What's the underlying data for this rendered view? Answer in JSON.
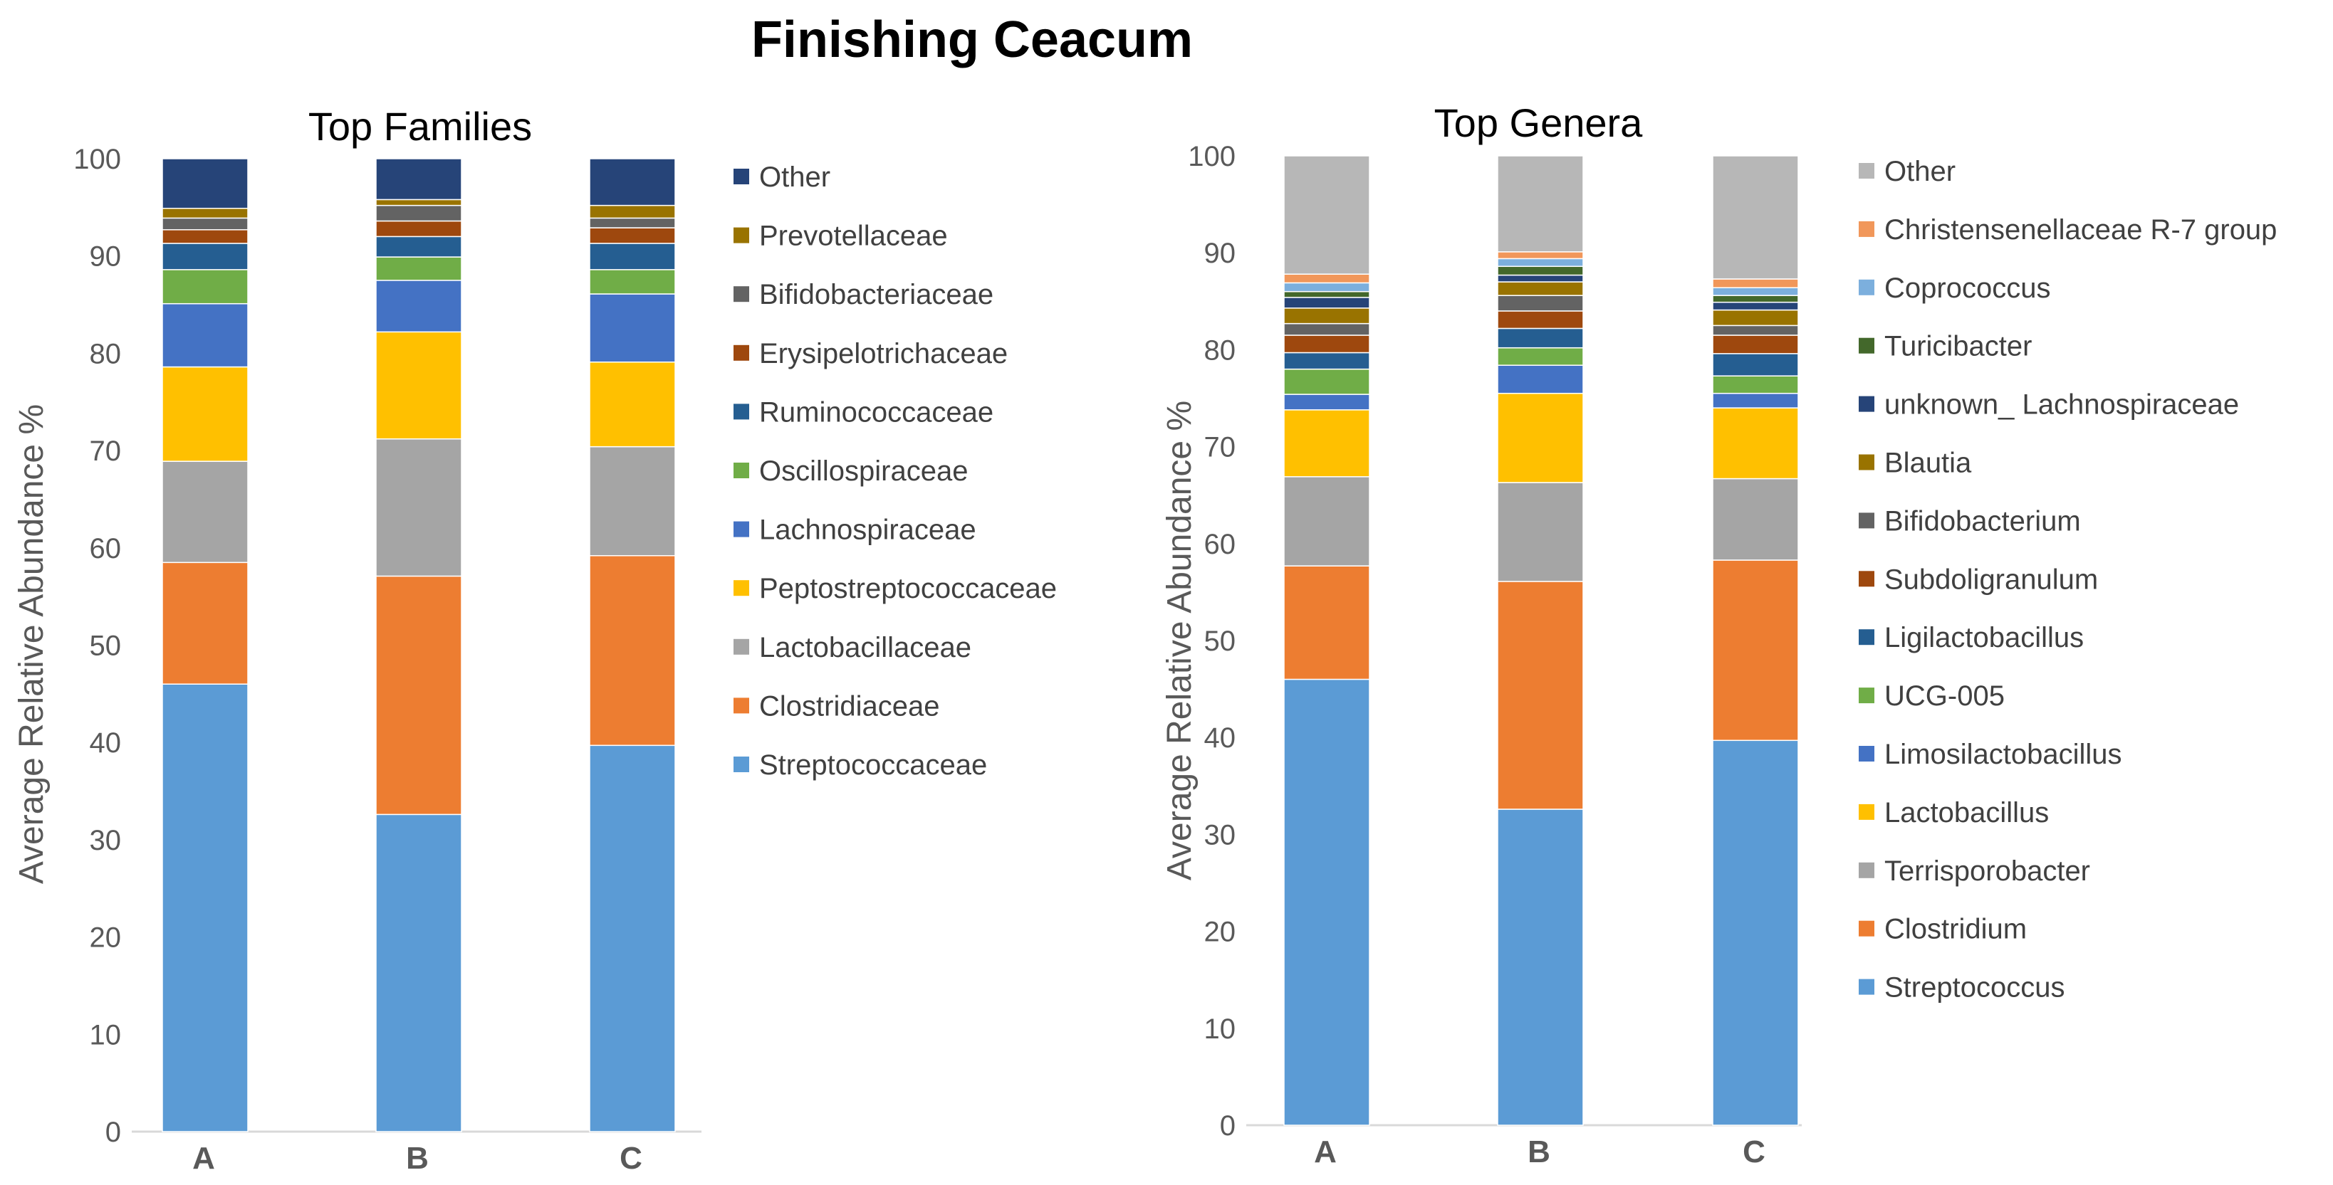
{
  "figure_title": "Finishing Ceacum",
  "chart_data": [
    {
      "type": "bar",
      "stacked": true,
      "title": "Top Families",
      "xlabel": "",
      "ylabel": "Average Relative Abundance %",
      "ylim": [
        0,
        100
      ],
      "yticks": [
        0,
        10,
        20,
        30,
        40,
        50,
        60,
        70,
        80,
        90,
        100
      ],
      "categories": [
        "A",
        "B",
        "C"
      ],
      "legend_position": "right",
      "series": [
        {
          "name": "Streptococcaceae",
          "color": "#5B9BD5",
          "values": [
            46.0,
            32.6,
            39.7
          ]
        },
        {
          "name": "Clostridiaceae",
          "color": "#ED7D31",
          "values": [
            12.5,
            24.5,
            19.5
          ]
        },
        {
          "name": "Lactobacillaceae",
          "color": "#A5A5A5",
          "values": [
            10.4,
            14.1,
            11.2
          ]
        },
        {
          "name": "Peptostreptococcaceae",
          "color": "#FFC000",
          "values": [
            9.7,
            11.0,
            8.7
          ]
        },
        {
          "name": "Lachnospiraceae",
          "color": "#4472C4",
          "values": [
            6.5,
            5.3,
            7.0
          ]
        },
        {
          "name": "Oscillospiraceae",
          "color": "#70AD47",
          "values": [
            3.5,
            2.4,
            2.5
          ]
        },
        {
          "name": "Ruminococcaceae",
          "color": "#255E91",
          "values": [
            2.7,
            2.1,
            2.7
          ]
        },
        {
          "name": "Erysipelotrichaceae",
          "color": "#9E480E",
          "values": [
            1.4,
            1.6,
            1.6
          ]
        },
        {
          "name": "Bifidobacteriaceae",
          "color": "#636363",
          "values": [
            1.2,
            1.6,
            1.0
          ]
        },
        {
          "name": "Prevotellaceae",
          "color": "#997300",
          "values": [
            1.0,
            0.6,
            1.3
          ]
        },
        {
          "name": "Other",
          "color": "#264478",
          "values": [
            5.1,
            4.2,
            4.8
          ]
        }
      ]
    },
    {
      "type": "bar",
      "stacked": true,
      "title": "Top Genera",
      "xlabel": "",
      "ylabel": "Average Relative Abundance %",
      "ylim": [
        0,
        100
      ],
      "yticks": [
        0,
        10,
        20,
        30,
        40,
        50,
        60,
        70,
        80,
        90,
        100
      ],
      "categories": [
        "A",
        "B",
        "C"
      ],
      "legend_position": "right",
      "series": [
        {
          "name": "Streptococcus",
          "color": "#5B9BD5",
          "values": [
            46.0,
            32.6,
            39.7
          ]
        },
        {
          "name": "Clostridium",
          "color": "#ED7D31",
          "values": [
            11.7,
            23.5,
            18.6
          ]
        },
        {
          "name": "Terrisporobacter",
          "color": "#A5A5A5",
          "values": [
            9.2,
            10.2,
            8.4
          ]
        },
        {
          "name": "Lactobacillus",
          "color": "#FFC000",
          "values": [
            6.9,
            9.2,
            7.3
          ]
        },
        {
          "name": "Limosilactobacillus",
          "color": "#4472C4",
          "values": [
            1.6,
            2.9,
            1.5
          ]
        },
        {
          "name": "UCG-005",
          "color": "#70AD47",
          "values": [
            2.6,
            1.8,
            1.8
          ]
        },
        {
          "name": "Ligilactobacillus",
          "color": "#255E91",
          "values": [
            1.7,
            2.0,
            2.3
          ]
        },
        {
          "name": "Subdoligranulum",
          "color": "#9E480E",
          "values": [
            1.8,
            1.8,
            1.9
          ]
        },
        {
          "name": "Bifidobacterium",
          "color": "#636363",
          "values": [
            1.2,
            1.6,
            1.0
          ]
        },
        {
          "name": "Blautia",
          "color": "#997300",
          "values": [
            1.6,
            1.4,
            1.6
          ]
        },
        {
          "name": "unknown_ Lachnospiraceae",
          "color": "#264478",
          "values": [
            1.1,
            0.7,
            0.8
          ]
        },
        {
          "name": "Turicibacter",
          "color": "#43682B",
          "values": [
            0.6,
            0.9,
            0.7
          ]
        },
        {
          "name": "Coprococcus",
          "color": "#7CAFDD",
          "values": [
            0.9,
            0.8,
            0.8
          ]
        },
        {
          "name": "Christensenellaceae R-7 group",
          "color": "#F1975A",
          "values": [
            0.9,
            0.7,
            0.9
          ]
        },
        {
          "name": "Other",
          "color": "#B7B7B7",
          "values": [
            12.2,
            9.9,
            12.7
          ]
        }
      ]
    }
  ]
}
